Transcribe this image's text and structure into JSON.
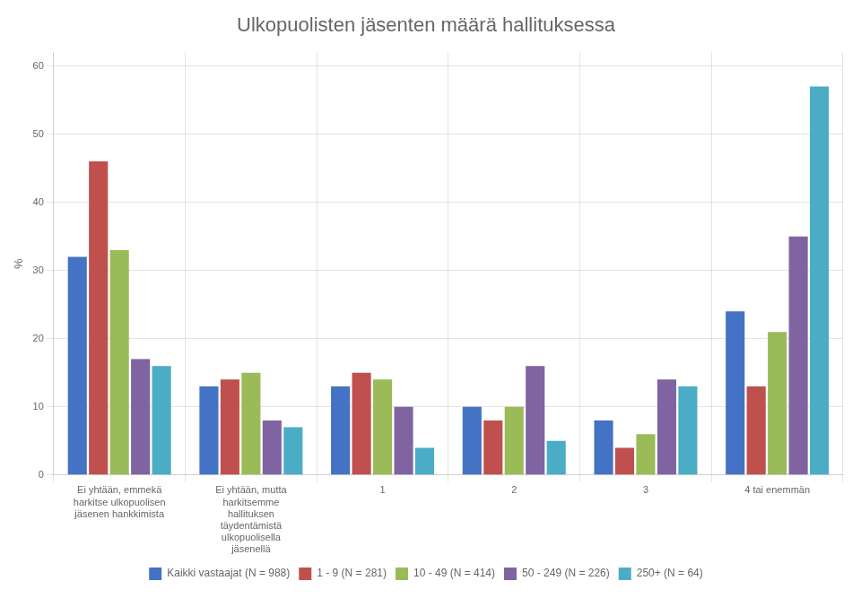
{
  "chart_data": {
    "type": "bar",
    "title": "Ulkopuolisten jäsenten määrä hallituksessa",
    "ylabel": "%",
    "categories": [
      "Ei yhtään, emmekä\nharkitse ulkopuolisen\njäsenen hankkimista",
      "Ei yhtään, mutta\nharkitsemme\nhallituksen\ntäydentämistä\nulkopuolisella\njäsenellä",
      "1",
      "2",
      "3",
      "4 tai enemmän"
    ],
    "series": [
      {
        "name": "Kaikki vastaajat (N = 988)",
        "color": "#4472c4",
        "values": [
          32,
          13,
          13,
          10,
          8,
          24
        ]
      },
      {
        "name": "1 - 9 (N = 281)",
        "color": "#c0504d",
        "values": [
          46,
          14,
          15,
          8,
          4,
          13
        ]
      },
      {
        "name": "10 - 49 (N = 414)",
        "color": "#9bbb59",
        "values": [
          33,
          15,
          14,
          10,
          6,
          21
        ]
      },
      {
        "name": "50 - 249 (N = 226)",
        "color": "#8064a2",
        "values": [
          17,
          8,
          10,
          16,
          14,
          35
        ]
      },
      {
        "name": "250+ (N = 64)",
        "color": "#4bacc6",
        "values": [
          16,
          7,
          4,
          5,
          13,
          57
        ]
      }
    ],
    "ylim": [
      0,
      62
    ],
    "yticks": [
      0,
      10,
      20,
      30,
      40,
      50,
      60
    ],
    "grid": true,
    "legend": "bottom"
  }
}
